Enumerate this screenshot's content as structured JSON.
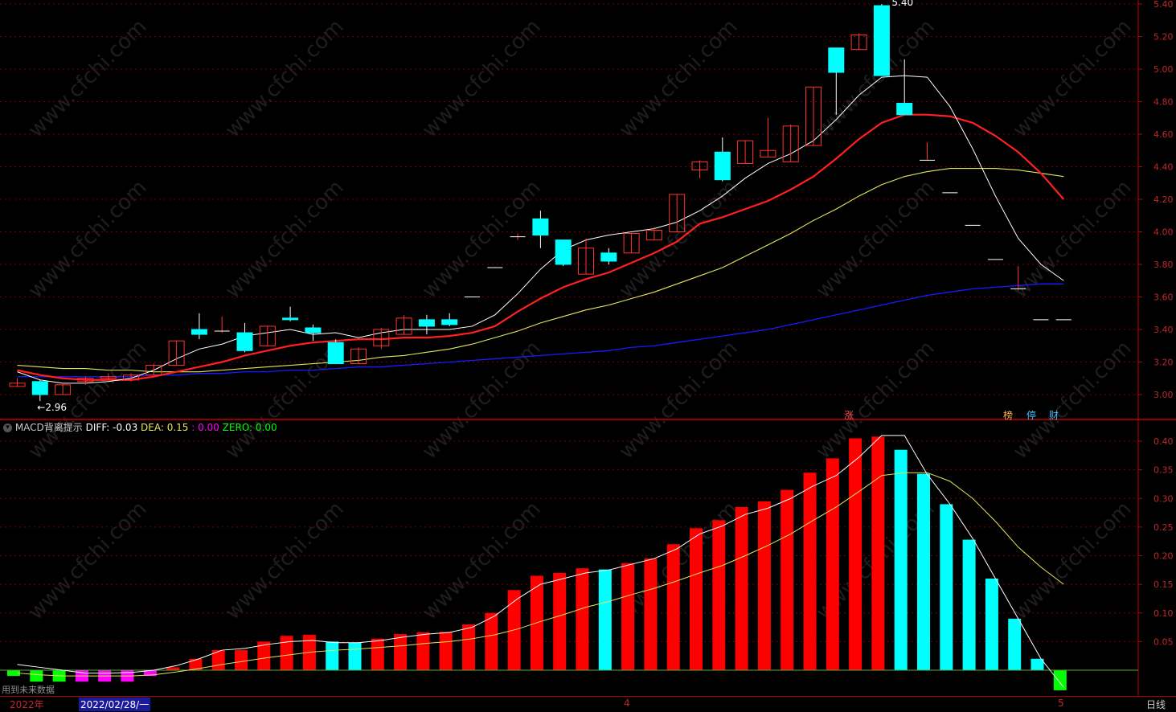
{
  "colors": {
    "bg": "#000000",
    "grid": "#7a0000",
    "axis_text": "#c02828",
    "up": "#ff3232",
    "down": "#00ffff",
    "ma5": "#ffffff",
    "ma10": "#ff2020",
    "ma20": "#e6e65a",
    "ma60": "#1a1aff",
    "macd_pos": "#ff0000",
    "macd_fall": "#00ffff",
    "macd_neg": "#00ff00",
    "macd_magenta": "#ff00ff",
    "diff_line": "#ffffff",
    "dea_line": "#e6e65a"
  },
  "watermark": "www.cfchi.com",
  "price_panel": {
    "high_label": "5.40",
    "low_label": "2.96",
    "markers": [
      {
        "text": "涨",
        "color": "#ff5050"
      },
      {
        "text": "榜",
        "color": "#ffb050"
      },
      {
        "text": "停",
        "color": "#40c0ff"
      },
      {
        "text": "财",
        "color": "#40c0ff"
      }
    ]
  },
  "macd_header": {
    "icon": "chevron-down-icon",
    "name": "MACD背离提示",
    "diff": "DIFF: -0.03",
    "dea": "DEA: 0.15",
    "colon_val": ": 0.00",
    "zero": "ZERO: 0.00"
  },
  "footer": {
    "year": "2022年",
    "date": "2022/02/28/一",
    "month4": "4",
    "month5": "5",
    "period": "日线",
    "note": "用到未来数据"
  },
  "chart_data": [
    {
      "type": "candlestick",
      "ylim": [
        2.9,
        5.45
      ],
      "yticks": [
        "3.00",
        "3.20",
        "3.40",
        "3.60",
        "3.80",
        "4.00",
        "4.20",
        "4.40",
        "4.60",
        "4.80",
        "5.00",
        "5.20",
        "5.40"
      ],
      "candles": [
        {
          "o": 3.05,
          "h": 3.1,
          "l": 3.05,
          "c": 3.07
        },
        {
          "o": 3.08,
          "h": 3.09,
          "l": 2.96,
          "c": 3.0
        },
        {
          "o": 3.0,
          "h": 3.07,
          "l": 3.0,
          "c": 3.06
        },
        {
          "o": 3.08,
          "h": 3.11,
          "l": 3.06,
          "c": 3.1
        },
        {
          "o": 3.1,
          "h": 3.13,
          "l": 3.09,
          "c": 3.11
        },
        {
          "o": 3.09,
          "h": 3.13,
          "l": 3.08,
          "c": 3.12
        },
        {
          "o": 3.12,
          "h": 3.19,
          "l": 3.12,
          "c": 3.18
        },
        {
          "o": 3.18,
          "h": 3.33,
          "l": 3.18,
          "c": 3.33
        },
        {
          "o": 3.4,
          "h": 3.5,
          "l": 3.34,
          "c": 3.37
        },
        {
          "o": 3.39,
          "h": 3.48,
          "l": 3.38,
          "c": 3.39
        },
        {
          "o": 3.38,
          "h": 3.44,
          "l": 3.26,
          "c": 3.27
        },
        {
          "o": 3.3,
          "h": 3.42,
          "l": 3.3,
          "c": 3.42
        },
        {
          "o": 3.47,
          "h": 3.54,
          "l": 3.45,
          "c": 3.46
        },
        {
          "o": 3.41,
          "h": 3.43,
          "l": 3.33,
          "c": 3.38
        },
        {
          "o": 3.32,
          "h": 3.34,
          "l": 3.19,
          "c": 3.19
        },
        {
          "o": 3.19,
          "h": 3.29,
          "l": 3.19,
          "c": 3.28
        },
        {
          "o": 3.3,
          "h": 3.41,
          "l": 3.28,
          "c": 3.4
        },
        {
          "o": 3.37,
          "h": 3.49,
          "l": 3.37,
          "c": 3.47
        },
        {
          "o": 3.46,
          "h": 3.49,
          "l": 3.37,
          "c": 3.42
        },
        {
          "o": 3.46,
          "h": 3.5,
          "l": 3.42,
          "c": 3.43
        },
        {
          "o": 3.6,
          "h": 3.6,
          "l": 3.6,
          "c": 3.6
        },
        {
          "o": 3.78,
          "h": 3.78,
          "l": 3.78,
          "c": 3.78
        },
        {
          "o": 3.97,
          "h": 3.99,
          "l": 3.95,
          "c": 3.97
        },
        {
          "o": 4.08,
          "h": 4.13,
          "l": 3.9,
          "c": 3.98
        },
        {
          "o": 3.95,
          "h": 3.95,
          "l": 3.79,
          "c": 3.8
        },
        {
          "o": 3.74,
          "h": 3.96,
          "l": 3.74,
          "c": 3.9
        },
        {
          "o": 3.87,
          "h": 3.9,
          "l": 3.8,
          "c": 3.82
        },
        {
          "o": 3.87,
          "h": 3.99,
          "l": 3.87,
          "c": 3.99
        },
        {
          "o": 3.95,
          "h": 4.03,
          "l": 3.95,
          "c": 4.01
        },
        {
          "o": 4.0,
          "h": 4.23,
          "l": 4.0,
          "c": 4.23
        },
        {
          "o": 4.38,
          "h": 4.44,
          "l": 4.33,
          "c": 4.43
        },
        {
          "o": 4.49,
          "h": 4.58,
          "l": 4.31,
          "c": 4.32
        },
        {
          "o": 4.42,
          "h": 4.56,
          "l": 4.42,
          "c": 4.56
        },
        {
          "o": 4.46,
          "h": 4.7,
          "l": 4.46,
          "c": 4.5
        },
        {
          "o": 4.43,
          "h": 4.66,
          "l": 4.43,
          "c": 4.65
        },
        {
          "o": 4.53,
          "h": 4.89,
          "l": 4.53,
          "c": 4.89
        },
        {
          "o": 5.13,
          "h": 5.13,
          "l": 4.72,
          "c": 4.98
        },
        {
          "o": 5.12,
          "h": 5.22,
          "l": 5.12,
          "c": 5.21
        },
        {
          "o": 5.39,
          "h": 5.4,
          "l": 4.96,
          "c": 4.96
        },
        {
          "o": 4.79,
          "h": 5.06,
          "l": 4.72,
          "c": 4.72
        },
        {
          "o": 4.44,
          "h": 4.55,
          "l": 4.44,
          "c": 4.44
        },
        {
          "o": 4.24,
          "h": 4.24,
          "l": 4.24,
          "c": 4.24
        },
        {
          "o": 4.04,
          "h": 4.04,
          "l": 4.04,
          "c": 4.04
        },
        {
          "o": 3.83,
          "h": 3.83,
          "l": 3.83,
          "c": 3.83
        },
        {
          "o": 3.65,
          "h": 3.79,
          "l": 3.64,
          "c": 3.65
        },
        {
          "o": 3.46,
          "h": 3.46,
          "l": 3.46,
          "c": 3.46
        },
        {
          "o": 3.46,
          "h": 3.46,
          "l": 3.46,
          "c": 3.46
        }
      ],
      "ma5": [
        3.14,
        3.09,
        3.07,
        3.07,
        3.08,
        3.1,
        3.15,
        3.22,
        3.28,
        3.31,
        3.36,
        3.38,
        3.4,
        3.37,
        3.38,
        3.35,
        3.38,
        3.4,
        3.4,
        3.4,
        3.42,
        3.49,
        3.62,
        3.77,
        3.89,
        3.95,
        3.98,
        4.0,
        4.02,
        4.06,
        4.13,
        4.22,
        4.33,
        4.42,
        4.48,
        4.56,
        4.69,
        4.84,
        4.95,
        4.96,
        4.95,
        4.77,
        4.51,
        4.22,
        3.96,
        3.8,
        3.7
      ],
      "ma10": [
        3.15,
        3.12,
        3.1,
        3.09,
        3.09,
        3.09,
        3.11,
        3.14,
        3.17,
        3.2,
        3.24,
        3.27,
        3.3,
        3.32,
        3.33,
        3.34,
        3.34,
        3.35,
        3.35,
        3.36,
        3.38,
        3.42,
        3.51,
        3.59,
        3.66,
        3.71,
        3.75,
        3.81,
        3.87,
        3.94,
        4.05,
        4.09,
        4.14,
        4.19,
        4.26,
        4.34,
        4.45,
        4.57,
        4.67,
        4.72,
        4.72,
        4.71,
        4.67,
        4.59,
        4.49,
        4.36,
        4.2
      ],
      "ma20": [
        3.18,
        3.17,
        3.16,
        3.16,
        3.15,
        3.15,
        3.14,
        3.14,
        3.14,
        3.15,
        3.16,
        3.17,
        3.18,
        3.19,
        3.2,
        3.21,
        3.23,
        3.24,
        3.26,
        3.28,
        3.31,
        3.35,
        3.39,
        3.44,
        3.48,
        3.52,
        3.55,
        3.59,
        3.63,
        3.68,
        3.73,
        3.78,
        3.85,
        3.92,
        3.99,
        4.07,
        4.14,
        4.22,
        4.29,
        4.34,
        4.37,
        4.39,
        4.39,
        4.39,
        4.38,
        4.36,
        4.34
      ],
      "ma60": [
        3.11,
        3.11,
        3.11,
        3.11,
        3.11,
        3.11,
        3.12,
        3.12,
        3.13,
        3.13,
        3.14,
        3.14,
        3.15,
        3.15,
        3.16,
        3.17,
        3.17,
        3.18,
        3.19,
        3.2,
        3.21,
        3.22,
        3.23,
        3.24,
        3.25,
        3.26,
        3.27,
        3.29,
        3.3,
        3.32,
        3.34,
        3.36,
        3.38,
        3.4,
        3.43,
        3.46,
        3.49,
        3.52,
        3.55,
        3.58,
        3.61,
        3.63,
        3.65,
        3.66,
        3.67,
        3.68,
        3.68
      ]
    },
    {
      "type": "bar",
      "title": "MACD背离提示",
      "ylim": [
        -0.035,
        0.43
      ],
      "yticks": [
        "0.05",
        "0.10",
        "0.15",
        "0.20",
        "0.25",
        "0.30",
        "0.35",
        "0.40"
      ],
      "macd": [
        -0.01,
        -0.02,
        -0.02,
        -0.02,
        -0.02,
        -0.02,
        -0.01,
        0.005,
        0.02,
        0.035,
        0.035,
        0.05,
        0.06,
        0.062,
        0.05,
        0.048,
        0.055,
        0.063,
        0.066,
        0.067,
        0.08,
        0.1,
        0.14,
        0.165,
        0.17,
        0.178,
        0.176,
        0.187,
        0.195,
        0.22,
        0.248,
        0.262,
        0.285,
        0.295,
        0.315,
        0.345,
        0.37,
        0.405,
        0.408,
        0.385,
        0.343,
        0.29,
        0.228,
        0.16,
        0.09,
        0.02,
        -0.035
      ],
      "bar_kind": [
        "neg",
        "neg",
        "neg",
        "mag",
        "mag",
        "mag",
        "mag",
        "pos",
        "pos",
        "pos",
        "pos",
        "pos",
        "pos",
        "pos",
        "fall",
        "fall",
        "pos",
        "pos",
        "pos",
        "pos",
        "pos",
        "pos",
        "pos",
        "pos",
        "pos",
        "pos",
        "fall",
        "pos",
        "pos",
        "pos",
        "pos",
        "pos",
        "pos",
        "pos",
        "pos",
        "pos",
        "pos",
        "pos",
        "pos",
        "fall",
        "fall",
        "fall",
        "fall",
        "fall",
        "fall",
        "fall",
        "neg"
      ],
      "diff": [
        0.01,
        0.005,
        0.0,
        -0.005,
        -0.005,
        -0.004,
        0.0,
        0.008,
        0.02,
        0.035,
        0.038,
        0.045,
        0.05,
        0.052,
        0.048,
        0.048,
        0.052,
        0.058,
        0.063,
        0.066,
        0.075,
        0.095,
        0.125,
        0.15,
        0.16,
        0.17,
        0.175,
        0.185,
        0.195,
        0.212,
        0.238,
        0.252,
        0.272,
        0.283,
        0.3,
        0.322,
        0.34,
        0.372,
        0.41,
        0.41,
        0.342,
        0.29,
        0.23,
        0.16,
        0.09,
        0.02,
        -0.03
      ],
      "dea": [
        -0.005,
        -0.008,
        -0.01,
        -0.01,
        -0.01,
        -0.01,
        -0.008,
        -0.003,
        0.003,
        0.01,
        0.016,
        0.022,
        0.027,
        0.032,
        0.035,
        0.037,
        0.04,
        0.043,
        0.047,
        0.05,
        0.055,
        0.062,
        0.072,
        0.085,
        0.097,
        0.11,
        0.12,
        0.132,
        0.143,
        0.156,
        0.17,
        0.183,
        0.2,
        0.218,
        0.238,
        0.262,
        0.285,
        0.312,
        0.34,
        0.345,
        0.345,
        0.33,
        0.3,
        0.26,
        0.215,
        0.18,
        0.15
      ]
    }
  ]
}
